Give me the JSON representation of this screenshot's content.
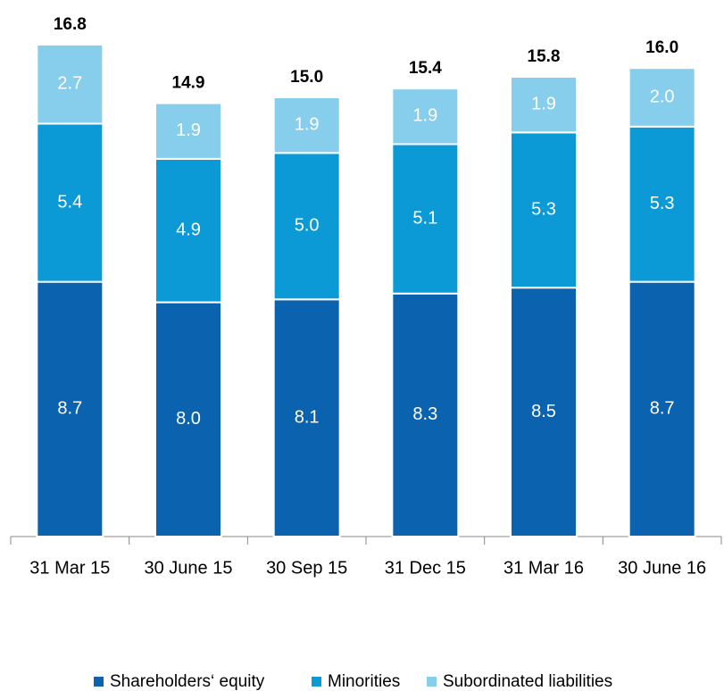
{
  "chart_data": {
    "type": "stacked_bar",
    "categories": [
      "31 Mar 15",
      "30 June 15",
      "30 Sep 15",
      "31 Dec 15",
      "31 Mar 16",
      "30 June 16"
    ],
    "series": [
      {
        "name": "Shareholders‘ equity",
        "color": "#0b63b0",
        "values": [
          8.7,
          8.0,
          8.1,
          8.3,
          8.5,
          8.7
        ]
      },
      {
        "name": "Minorities",
        "color": "#0b9ad6",
        "values": [
          5.4,
          4.9,
          5.0,
          5.1,
          5.3,
          5.3
        ]
      },
      {
        "name": "Subordinated liabilities",
        "color": "#87cdec",
        "values": [
          2.7,
          1.9,
          1.9,
          1.9,
          1.9,
          2.0
        ]
      }
    ],
    "totals": [
      16.8,
      14.9,
      15.0,
      15.4,
      15.8,
      16.0
    ],
    "value_labels_format": "one-decimal"
  }
}
